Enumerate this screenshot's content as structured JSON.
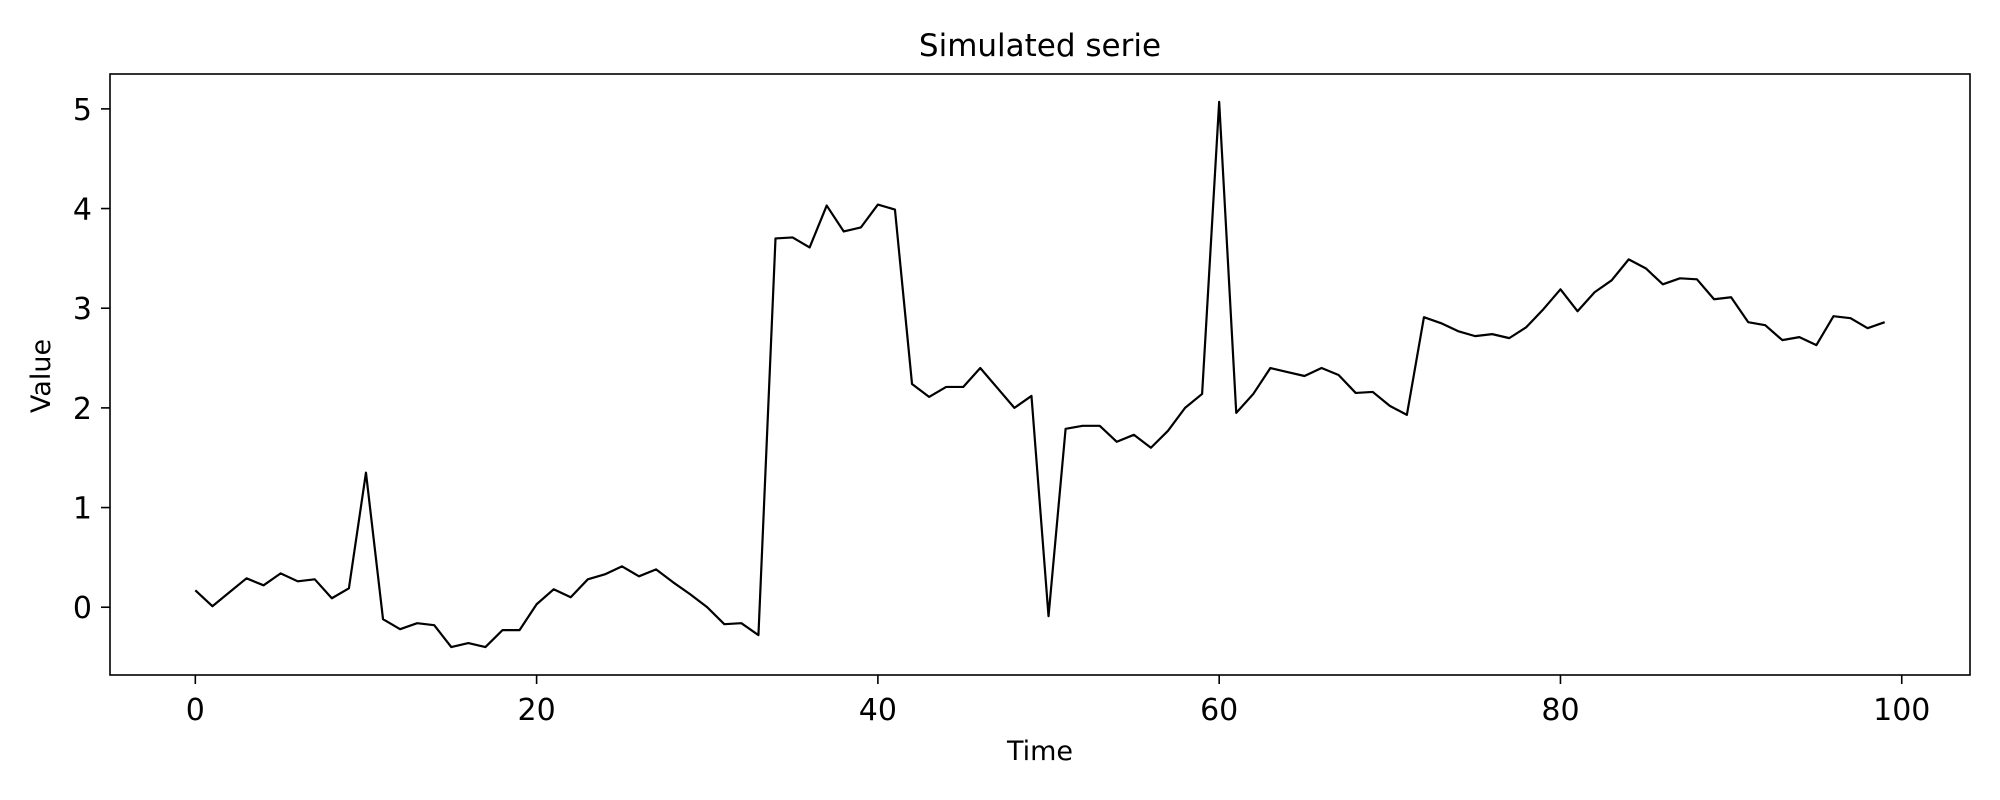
{
  "chart_data": {
    "type": "line",
    "title": "Simulated serie",
    "xlabel": "Time",
    "ylabel": "Value",
    "xlim": [
      -5,
      104
    ],
    "ylim": [
      -0.68,
      5.35
    ],
    "xticks": [
      0,
      20,
      40,
      60,
      80,
      100
    ],
    "yticks": [
      0,
      1,
      2,
      3,
      4,
      5
    ],
    "grid": false,
    "line_color": "#000000",
    "series": [
      {
        "x": [
          0,
          1,
          2,
          3,
          4,
          5,
          6,
          7,
          8,
          9,
          10,
          11,
          12,
          13,
          14,
          15,
          16,
          17,
          18,
          19,
          20,
          21,
          22,
          23,
          24,
          25,
          26,
          27,
          28,
          29,
          30,
          31,
          32,
          33,
          34,
          35,
          36,
          37,
          38,
          39,
          40,
          41,
          42,
          43,
          44,
          45,
          46,
          47,
          48,
          49,
          50,
          51,
          52,
          53,
          54,
          55,
          56,
          57,
          58,
          59,
          60,
          61,
          62,
          63,
          64,
          65,
          66,
          67,
          68,
          69,
          70,
          71,
          72,
          73,
          74,
          75,
          76,
          77,
          78,
          79,
          80,
          81,
          82,
          83,
          84,
          85,
          86,
          87,
          88,
          89,
          90,
          91,
          92,
          93,
          94,
          95,
          96,
          97,
          98,
          99
        ],
        "values": [
          0.17,
          0.01,
          0.15,
          0.29,
          0.22,
          0.34,
          0.26,
          0.28,
          0.09,
          0.19,
          1.35,
          -0.12,
          -0.22,
          -0.16,
          -0.18,
          -0.4,
          -0.36,
          -0.4,
          -0.23,
          -0.23,
          0.03,
          0.18,
          0.1,
          0.28,
          0.33,
          0.41,
          0.31,
          0.38,
          0.25,
          0.13,
          0.0,
          -0.17,
          -0.16,
          -0.28,
          3.7,
          3.71,
          3.61,
          4.03,
          3.77,
          3.81,
          4.04,
          3.99,
          2.24,
          2.11,
          2.21,
          2.21,
          2.4,
          2.2,
          2.0,
          2.12,
          -0.09,
          1.79,
          1.82,
          1.82,
          1.66,
          1.73,
          1.6,
          1.77,
          2.0,
          2.14,
          5.07,
          1.95,
          2.14,
          2.4,
          2.36,
          2.32,
          2.4,
          2.33,
          2.15,
          2.16,
          2.02,
          1.93,
          2.91,
          2.85,
          2.77,
          2.72,
          2.74,
          2.7,
          2.81,
          2.99,
          3.19,
          2.97,
          3.16,
          3.28,
          3.49,
          3.4,
          3.24,
          3.3,
          3.29,
          3.09,
          3.11,
          2.86,
          2.83,
          2.68,
          2.71,
          2.63,
          2.92,
          2.9,
          2.8,
          2.86
        ]
      }
    ]
  }
}
